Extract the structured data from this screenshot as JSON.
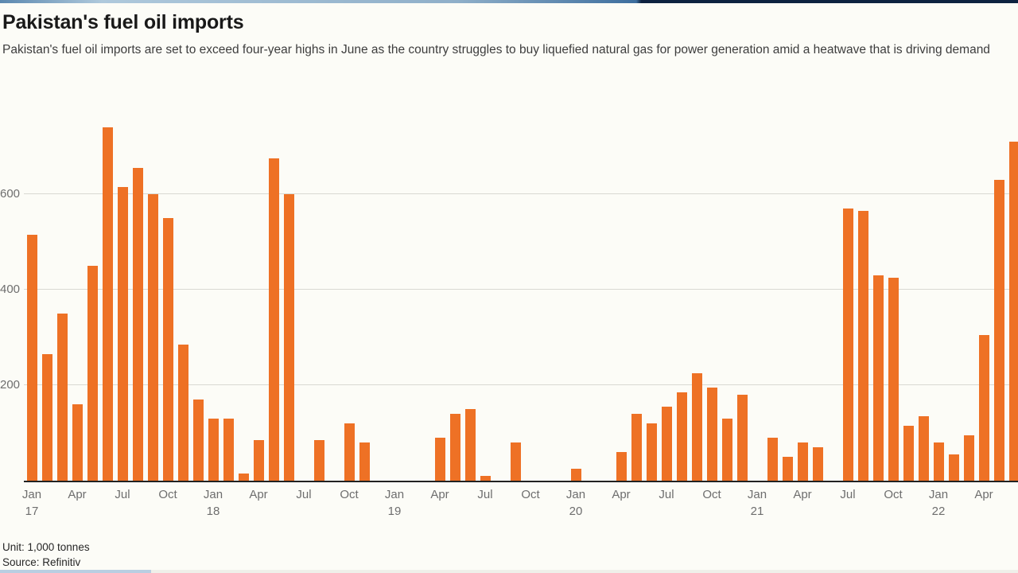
{
  "page": {
    "title": "Pakistan's fuel oil imports",
    "subtitle": "Pakistan's fuel oil imports are set to exceed four-year highs in June as the country struggles to buy liquefied natural gas for power generation amid a heatwave that is driving demand",
    "footnote_unit": "Unit: 1,000 tonnes",
    "footnote_source": "Source: Refinitiv"
  },
  "colors": {
    "bar": "#EE7125",
    "background": "#FCFCF7",
    "gridline": "#D9D9D3",
    "baseline": "#222222",
    "axis_text": "#6E6E6E",
    "title_text": "#191919",
    "subtitle_text": "#3D3D3D",
    "topbar_gradient": [
      "#5B88AF",
      "#AFC9DC",
      "#8FAFC9",
      "#3D6E9E",
      "#0D2240"
    ],
    "bottombar_left": "#B9CEE2",
    "bottombar_right": "#EFEFE9"
  },
  "chart_data": {
    "type": "bar",
    "title": "Pakistan's fuel oil imports",
    "xlabel": "",
    "ylabel": "",
    "unit": "1,000 tonnes",
    "source": "Refinitiv",
    "ylim": [
      0,
      780
    ],
    "yticks": [
      200,
      400,
      600
    ],
    "grid": true,
    "legend": "none",
    "categories": [
      "Jan 2017",
      "Feb 2017",
      "Mar 2017",
      "Apr 2017",
      "May 2017",
      "Jun 2017",
      "Jul 2017",
      "Aug 2017",
      "Sep 2017",
      "Oct 2017",
      "Nov 2017",
      "Dec 2017",
      "Jan 2018",
      "Feb 2018",
      "Mar 2018",
      "Apr 2018",
      "May 2018",
      "Jun 2018",
      "Jul 2018",
      "Aug 2018",
      "Sep 2018",
      "Oct 2018",
      "Nov 2018",
      "Dec 2018",
      "Jan 2019",
      "Feb 2019",
      "Mar 2019",
      "Apr 2019",
      "May 2019",
      "Jun 2019",
      "Jul 2019",
      "Aug 2019",
      "Sep 2019",
      "Oct 2019",
      "Nov 2019",
      "Dec 2019",
      "Jan 2020",
      "Feb 2020",
      "Mar 2020",
      "Apr 2020",
      "May 2020",
      "Jun 2020",
      "Jul 2020",
      "Aug 2020",
      "Sep 2020",
      "Oct 2020",
      "Nov 2020",
      "Dec 2020",
      "Jan 2021",
      "Feb 2021",
      "Mar 2021",
      "Apr 2021",
      "May 2021",
      "Jun 2021",
      "Jul 2021",
      "Aug 2021",
      "Sep 2021",
      "Oct 2021",
      "Nov 2021",
      "Dec 2021",
      "Jan 2022",
      "Feb 2022",
      "Mar 2022",
      "Apr 2022",
      "May 2022",
      "Jun 2022"
    ],
    "values": [
      515,
      265,
      350,
      160,
      450,
      740,
      615,
      655,
      600,
      550,
      285,
      170,
      130,
      130,
      15,
      85,
      675,
      600,
      0,
      85,
      0,
      120,
      80,
      0,
      0,
      0,
      0,
      90,
      140,
      150,
      10,
      0,
      80,
      0,
      0,
      0,
      25,
      0,
      0,
      60,
      140,
      120,
      155,
      185,
      225,
      195,
      130,
      180,
      0,
      90,
      50,
      80,
      70,
      0,
      570,
      565,
      430,
      425,
      115,
      135,
      80,
      55,
      95,
      305,
      630,
      710
    ],
    "xticks": [
      {
        "label": "Jan",
        "year": "17",
        "index": 0
      },
      {
        "label": "Apr",
        "index": 3
      },
      {
        "label": "Jul",
        "index": 6
      },
      {
        "label": "Oct",
        "index": 9
      },
      {
        "label": "Jan",
        "year": "18",
        "index": 12
      },
      {
        "label": "Apr",
        "index": 15
      },
      {
        "label": "Jul",
        "index": 18
      },
      {
        "label": "Oct",
        "index": 21
      },
      {
        "label": "Jan",
        "year": "19",
        "index": 24
      },
      {
        "label": "Apr",
        "index": 27
      },
      {
        "label": "Jul",
        "index": 30
      },
      {
        "label": "Oct",
        "index": 33
      },
      {
        "label": "Jan",
        "year": "20",
        "index": 36
      },
      {
        "label": "Apr",
        "index": 39
      },
      {
        "label": "Jul",
        "index": 42
      },
      {
        "label": "Oct",
        "index": 45
      },
      {
        "label": "Jan",
        "year": "21",
        "index": 48
      },
      {
        "label": "Apr",
        "index": 51
      },
      {
        "label": "Jul",
        "index": 54
      },
      {
        "label": "Oct",
        "index": 57
      },
      {
        "label": "Jan",
        "year": "22",
        "index": 60
      },
      {
        "label": "Apr",
        "index": 63
      }
    ]
  }
}
